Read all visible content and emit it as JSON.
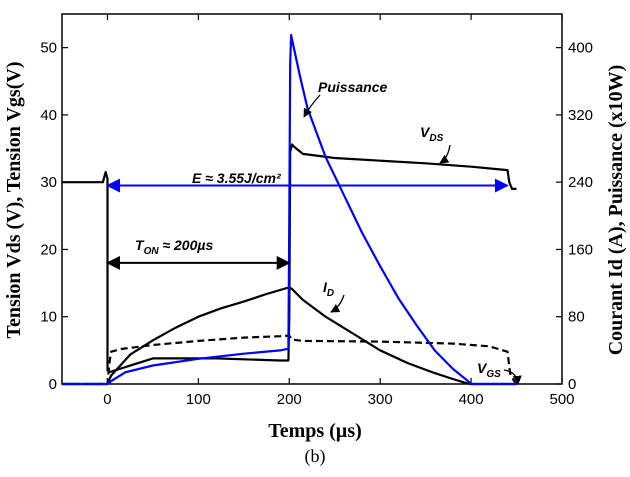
{
  "chart_data": {
    "type": "line",
    "caption": "(b)",
    "xlabel": "Temps (µs)",
    "ylabel_left": "Tension Vds (V), Tension Vgs(V)",
    "ylabel_right": "Courant Id (A), Puissance (x10W)",
    "xlim": [
      -50,
      500
    ],
    "ylim_left": [
      0,
      55
    ],
    "ylim_right": [
      0,
      440
    ],
    "x_ticks": [
      0,
      100,
      200,
      300,
      400,
      500
    ],
    "y_left_ticks": [
      0,
      10,
      20,
      30,
      40,
      50
    ],
    "y_right_ticks": [
      0,
      80,
      160,
      240,
      320,
      400
    ],
    "grid": false,
    "series": [
      {
        "name": "VDS",
        "axis": "left",
        "color": "#000000",
        "style": "solid",
        "points": [
          [
            -50,
            30
          ],
          [
            -5,
            30
          ],
          [
            -2,
            31.5
          ],
          [
            0,
            30.5
          ],
          [
            0,
            2
          ],
          [
            3,
            1.8
          ],
          [
            50,
            3.8
          ],
          [
            120,
            3.8
          ],
          [
            190,
            3.5
          ],
          [
            199,
            3.5
          ],
          [
            200,
            10
          ],
          [
            201,
            34.5
          ],
          [
            203,
            35.6
          ],
          [
            205,
            35.3
          ],
          [
            215,
            34.2
          ],
          [
            250,
            33.6
          ],
          [
            300,
            33.2
          ],
          [
            350,
            32.8
          ],
          [
            400,
            32.3
          ],
          [
            440,
            31.8
          ],
          [
            442,
            30
          ],
          [
            445,
            29
          ],
          [
            450,
            29
          ]
        ]
      },
      {
        "name": "ID",
        "axis": "right",
        "color": "#000000",
        "style": "solid",
        "points": [
          [
            -50,
            0
          ],
          [
            0,
            0
          ],
          [
            4,
            10
          ],
          [
            25,
            35
          ],
          [
            50,
            52
          ],
          [
            75,
            67
          ],
          [
            100,
            80
          ],
          [
            125,
            90
          ],
          [
            150,
            98
          ],
          [
            175,
            107
          ],
          [
            200,
            115
          ],
          [
            203,
            113
          ],
          [
            215,
            100
          ],
          [
            240,
            80
          ],
          [
            270,
            60
          ],
          [
            300,
            40
          ],
          [
            330,
            25
          ],
          [
            360,
            13
          ],
          [
            380,
            6
          ],
          [
            395,
            1
          ],
          [
            400,
            0
          ],
          [
            450,
            0
          ]
        ]
      },
      {
        "name": "VGS",
        "axis": "left",
        "color": "#000000",
        "style": "dashed",
        "points": [
          [
            -50,
            0
          ],
          [
            0,
            0
          ],
          [
            2,
            3
          ],
          [
            4,
            4.8
          ],
          [
            15,
            5.2
          ],
          [
            50,
            5.8
          ],
          [
            100,
            6.4
          ],
          [
            150,
            6.9
          ],
          [
            190,
            7.1
          ],
          [
            200,
            7.2
          ],
          [
            203,
            6.6
          ],
          [
            215,
            6.4
          ],
          [
            300,
            6.3
          ],
          [
            380,
            6.0
          ],
          [
            420,
            5.6
          ],
          [
            440,
            4.8
          ],
          [
            443,
            1.5
          ],
          [
            447,
            0.5
          ],
          [
            450,
            0
          ]
        ]
      },
      {
        "name": "Puissance",
        "axis": "right",
        "color": "#0000ff",
        "style": "solid",
        "points": [
          [
            -50,
            0
          ],
          [
            0,
            0
          ],
          [
            5,
            4
          ],
          [
            20,
            14
          ],
          [
            50,
            22
          ],
          [
            100,
            30
          ],
          [
            150,
            36
          ],
          [
            190,
            40
          ],
          [
            199,
            42
          ],
          [
            200,
            200
          ],
          [
            201,
            380
          ],
          [
            202,
            415
          ],
          [
            205,
            400
          ],
          [
            212,
            365
          ],
          [
            220,
            328
          ],
          [
            240,
            270
          ],
          [
            260,
            225
          ],
          [
            280,
            180
          ],
          [
            300,
            140
          ],
          [
            320,
            102
          ],
          [
            340,
            70
          ],
          [
            360,
            40
          ],
          [
            380,
            18
          ],
          [
            395,
            5
          ],
          [
            400,
            0
          ],
          [
            450,
            0
          ]
        ]
      }
    ],
    "annotations": {
      "puissance": {
        "text": "Puissance",
        "x": 215,
        "y": 43.5
      },
      "vds_main": "V",
      "vds_sub": "DS",
      "id_main": "I",
      "id_sub": "D",
      "vgs_main": "V",
      "vgs_sub": "GS",
      "ton_main": "T",
      "ton_sub": "ON",
      "ton_rest": " ≈ 200µs",
      "energy": "E ≈ 3.55J/cm²",
      "ton_arrow": {
        "x1": 0,
        "x2": 200,
        "y": 18
      },
      "energy_arrow": {
        "x1": 0,
        "x2": 440,
        "y": 29.5
      }
    }
  }
}
